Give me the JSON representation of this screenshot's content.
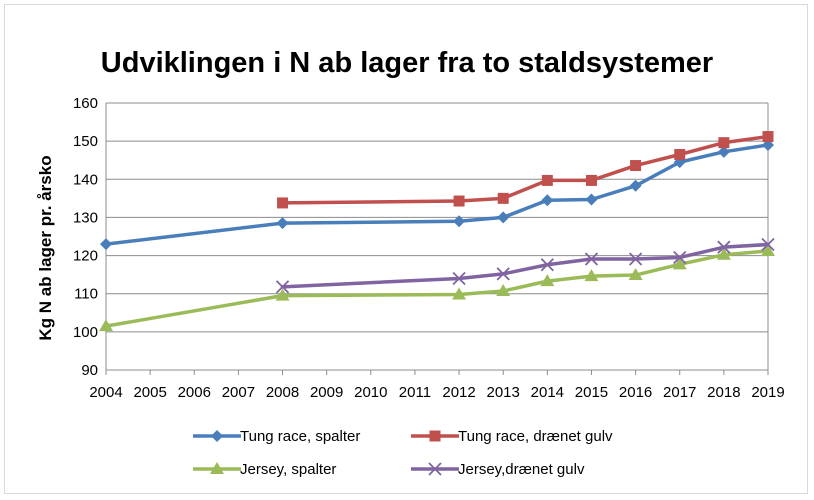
{
  "chart_data": {
    "type": "line",
    "title": "Udviklingen i N ab lager fra to staldsystemer",
    "xlabel": "",
    "ylabel": "Kg N ab lager pr. årsko",
    "ylim": [
      90,
      160
    ],
    "yticks": [
      90,
      100,
      110,
      120,
      130,
      140,
      150,
      160
    ],
    "categories": [
      "2004",
      "2005",
      "2006",
      "2007",
      "2008",
      "2009",
      "2010",
      "2011",
      "2012",
      "2013",
      "2014",
      "2015",
      "2016",
      "2017",
      "2018",
      "2019"
    ],
    "grid": "horizontal",
    "legend": "bottom",
    "series": [
      {
        "name": "Tung race, spalter",
        "color": "#4a7ebb",
        "marker": "diamond",
        "x": [
          2004,
          2008,
          2012,
          2013,
          2014,
          2015,
          2016,
          2017,
          2018,
          2019
        ],
        "values": [
          123,
          128.5,
          129,
          130,
          134.5,
          134.7,
          138.3,
          144.5,
          147.2,
          149
        ]
      },
      {
        "name": "Tung race, drænet gulv",
        "color": "#c0504d",
        "marker": "square",
        "x": [
          2008,
          2012,
          2013,
          2014,
          2015,
          2016,
          2017,
          2018,
          2019
        ],
        "values": [
          133.8,
          134.3,
          135,
          139.7,
          139.7,
          143.6,
          146.5,
          149.6,
          151.2
        ]
      },
      {
        "name": "Jersey, spalter",
        "color": "#9bbb59",
        "marker": "triangle",
        "x": [
          2004,
          2008,
          2012,
          2013,
          2014,
          2015,
          2016,
          2017,
          2018,
          2019
        ],
        "values": [
          101.5,
          109.5,
          109.8,
          110.7,
          113.3,
          114.6,
          114.9,
          117.7,
          120.2,
          121.2
        ]
      },
      {
        "name": "Jersey,drænet gulv",
        "color": "#8064a2",
        "marker": "x",
        "x": [
          2008,
          2012,
          2013,
          2014,
          2015,
          2016,
          2017,
          2018,
          2019
        ],
        "values": [
          111.8,
          114,
          115.2,
          117.6,
          119.1,
          119.1,
          119.5,
          122.2,
          122.9
        ]
      }
    ]
  }
}
